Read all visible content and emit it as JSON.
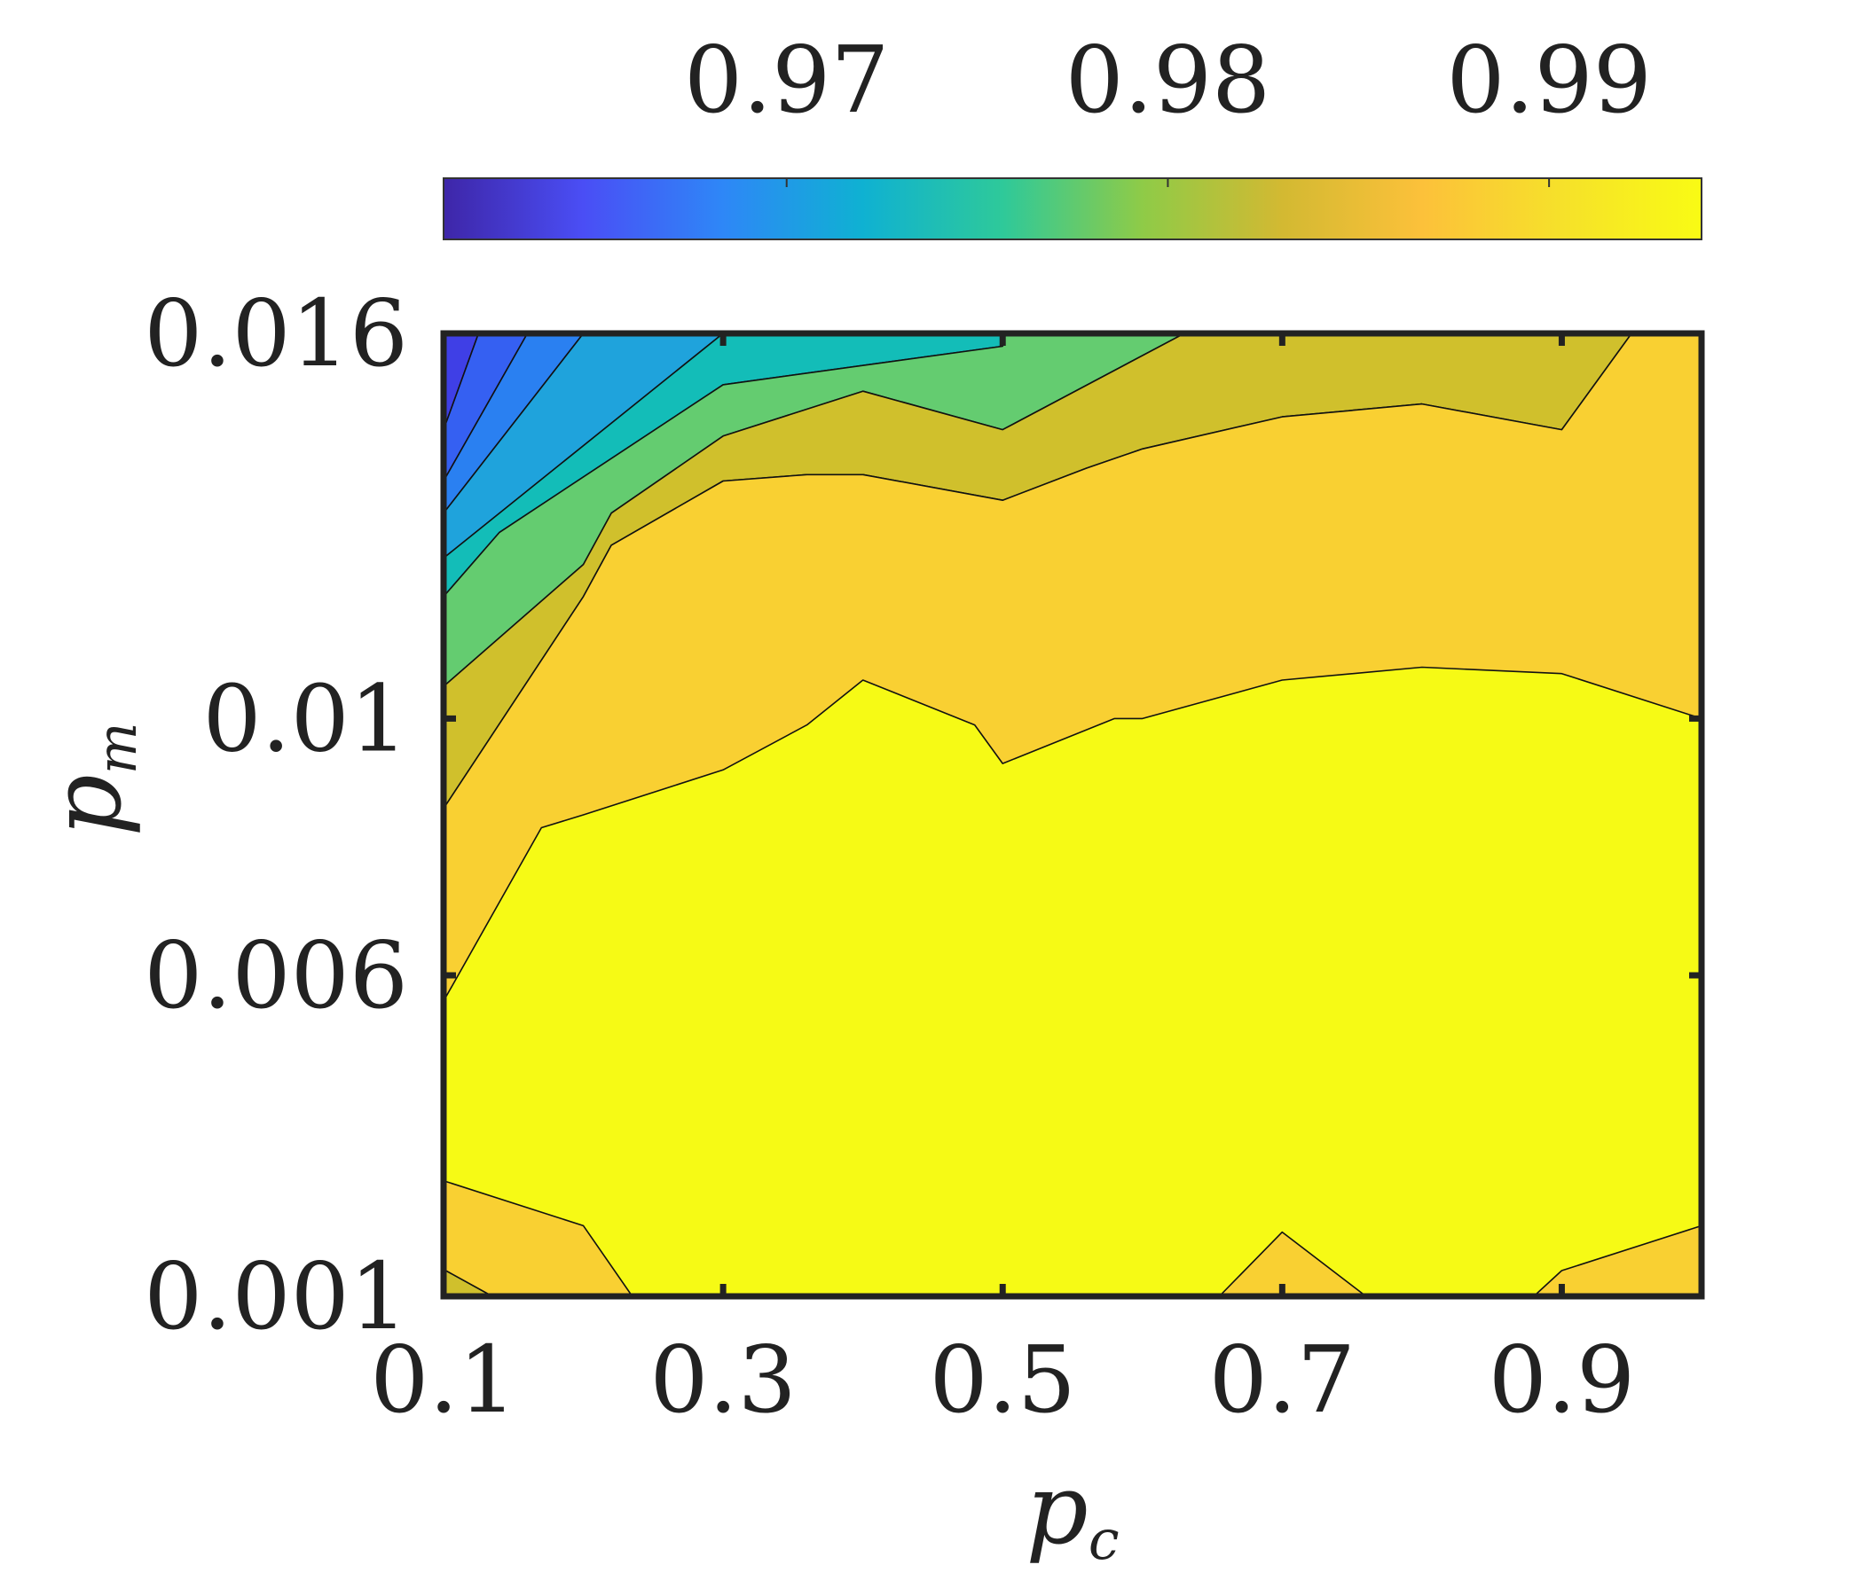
{
  "chart_data": {
    "type": "contour",
    "xlabel": "p",
    "xlabel_subscript": "c",
    "ylabel": "p",
    "ylabel_subscript": "m",
    "x_ticks": [
      "0.1",
      "0.3",
      "0.5",
      "0.7",
      "0.9"
    ],
    "y_ticks": [
      "0.001",
      "0.006",
      "0.01",
      "0.016"
    ],
    "xlim": [
      0.1,
      1.0
    ],
    "ylim": [
      0.001,
      0.016
    ],
    "colorbar": {
      "orientation": "horizontal",
      "placement": "top",
      "ticks": [
        "0.97",
        "0.98",
        "0.99"
      ],
      "range": [
        0.961,
        0.994
      ],
      "colormap": [
        "#3e26a8",
        "#4a4ef5",
        "#2e87f7",
        "#0fb1d2",
        "#2ec99a",
        "#8fcb47",
        "#d3b932",
        "#fcc13a",
        "#f6e12a",
        "#f9fb14"
      ]
    },
    "bands": [
      {
        "level_range": [
          "0.961",
          "0.964"
        ],
        "color": "#3f3fe6",
        "polygon": [
          [
            0.1,
            0.016
          ],
          [
            0.125,
            0.016
          ],
          [
            0.1,
            0.0145
          ]
        ]
      },
      {
        "level_range": [
          "0.964",
          "0.967"
        ],
        "color": "#3560f2",
        "polygon": [
          [
            0.125,
            0.016
          ],
          [
            0.16,
            0.016
          ],
          [
            0.1,
            0.0137
          ],
          [
            0.1,
            0.0145
          ]
        ]
      },
      {
        "level_range": [
          "0.967",
          "0.970"
        ],
        "color": "#2a80f1",
        "polygon": [
          [
            0.16,
            0.016
          ],
          [
            0.2,
            0.016
          ],
          [
            0.1,
            0.0132
          ],
          [
            0.1,
            0.0137
          ]
        ]
      },
      {
        "level_range": [
          "0.970",
          "0.973"
        ],
        "color": "#1fa3dc",
        "polygon": [
          [
            0.2,
            0.016
          ],
          [
            0.3,
            0.016
          ],
          [
            0.1,
            0.0125
          ],
          [
            0.1,
            0.0132
          ]
        ]
      },
      {
        "level_range": [
          "0.973",
          "0.977"
        ],
        "color": "#13bdb8",
        "polygon": [
          [
            0.3,
            0.016
          ],
          [
            0.5,
            0.016
          ],
          [
            0.5,
            0.0158
          ],
          [
            0.3,
            0.0152
          ],
          [
            0.14,
            0.0129
          ],
          [
            0.1,
            0.0119
          ],
          [
            0.1,
            0.0125
          ]
        ]
      },
      {
        "level_range": [
          "0.977",
          "0.982"
        ],
        "color": "#64cc70",
        "polygon": [
          [
            0.5,
            0.0158
          ],
          [
            0.5,
            0.016
          ],
          [
            0.63,
            0.016
          ],
          [
            0.5,
            0.0145
          ],
          [
            0.4,
            0.0151
          ],
          [
            0.3,
            0.0144
          ],
          [
            0.22,
            0.0132
          ],
          [
            0.2,
            0.0124
          ],
          [
            0.1,
            0.0105
          ],
          [
            0.1,
            0.0119
          ],
          [
            0.14,
            0.0129
          ],
          [
            0.3,
            0.0152
          ]
        ]
      },
      {
        "level_range": [
          "0.982",
          "0.986"
        ],
        "color": "#d0c02c",
        "polygon": [
          [
            0.63,
            0.016
          ],
          [
            0.9,
            0.016
          ],
          [
            0.95,
            0.016
          ],
          [
            0.9,
            0.0145
          ],
          [
            0.8,
            0.0149
          ],
          [
            0.7,
            0.0147
          ],
          [
            0.6,
            0.0142
          ],
          [
            0.56,
            0.0139
          ],
          [
            0.5,
            0.0134
          ],
          [
            0.4,
            0.0138
          ],
          [
            0.36,
            0.0138
          ],
          [
            0.3,
            0.0137
          ],
          [
            0.22,
            0.0127
          ],
          [
            0.2,
            0.0119
          ],
          [
            0.1,
            0.0086
          ],
          [
            0.1,
            0.0105
          ],
          [
            0.2,
            0.0124
          ],
          [
            0.22,
            0.0132
          ],
          [
            0.3,
            0.0144
          ],
          [
            0.4,
            0.0151
          ],
          [
            0.5,
            0.0145
          ]
        ]
      },
      {
        "level_range": [
          "0.982",
          "0.986"
        ],
        "color": "#d0c02c",
        "polygon": [
          [
            0.1,
            0.001
          ],
          [
            0.135,
            0.001
          ],
          [
            0.1,
            0.00142
          ]
        ]
      },
      {
        "level_range": [
          "0.986",
          "0.989"
        ],
        "color": "#f9d032",
        "polygon": [
          [
            0.95,
            0.016
          ],
          [
            1.0,
            0.016
          ],
          [
            1.0,
            0.01
          ],
          [
            0.9,
            0.0107
          ],
          [
            0.8,
            0.0108
          ],
          [
            0.7,
            0.0106
          ],
          [
            0.6,
            0.01
          ],
          [
            0.58,
            0.01
          ],
          [
            0.5,
            0.0093
          ],
          [
            0.48,
            0.0099
          ],
          [
            0.4,
            0.0106
          ],
          [
            0.36,
            0.0099
          ],
          [
            0.3,
            0.0092
          ],
          [
            0.2,
            0.0085
          ],
          [
            0.17,
            0.0083
          ],
          [
            0.1,
            0.0056
          ],
          [
            0.1,
            0.0086
          ],
          [
            0.2,
            0.0119
          ],
          [
            0.22,
            0.0127
          ],
          [
            0.3,
            0.0137
          ],
          [
            0.36,
            0.0138
          ],
          [
            0.4,
            0.0138
          ],
          [
            0.5,
            0.0134
          ],
          [
            0.56,
            0.0139
          ],
          [
            0.6,
            0.0142
          ],
          [
            0.7,
            0.0147
          ],
          [
            0.8,
            0.0149
          ],
          [
            0.9,
            0.0145
          ]
        ]
      },
      {
        "level_range": [
          "0.986",
          "0.989"
        ],
        "color": "#f9d032",
        "polygon": [
          [
            0.1,
            0.0028
          ],
          [
            0.2,
            0.0021
          ],
          [
            0.235,
            0.001
          ],
          [
            0.135,
            0.001
          ],
          [
            0.1,
            0.00142
          ]
        ]
      },
      {
        "level_range": [
          "0.986",
          "0.989"
        ],
        "color": "#f9d032",
        "polygon": [
          [
            0.655,
            0.001
          ],
          [
            0.7,
            0.002
          ],
          [
            0.76,
            0.001
          ]
        ]
      },
      {
        "level_range": [
          "0.986",
          "0.989"
        ],
        "color": "#f9d032",
        "polygon": [
          [
            0.88,
            0.001
          ],
          [
            0.9,
            0.0014
          ],
          [
            1.0,
            0.0021
          ],
          [
            1.0,
            0.001
          ]
        ]
      }
    ],
    "background_color": "#f6fa15"
  }
}
